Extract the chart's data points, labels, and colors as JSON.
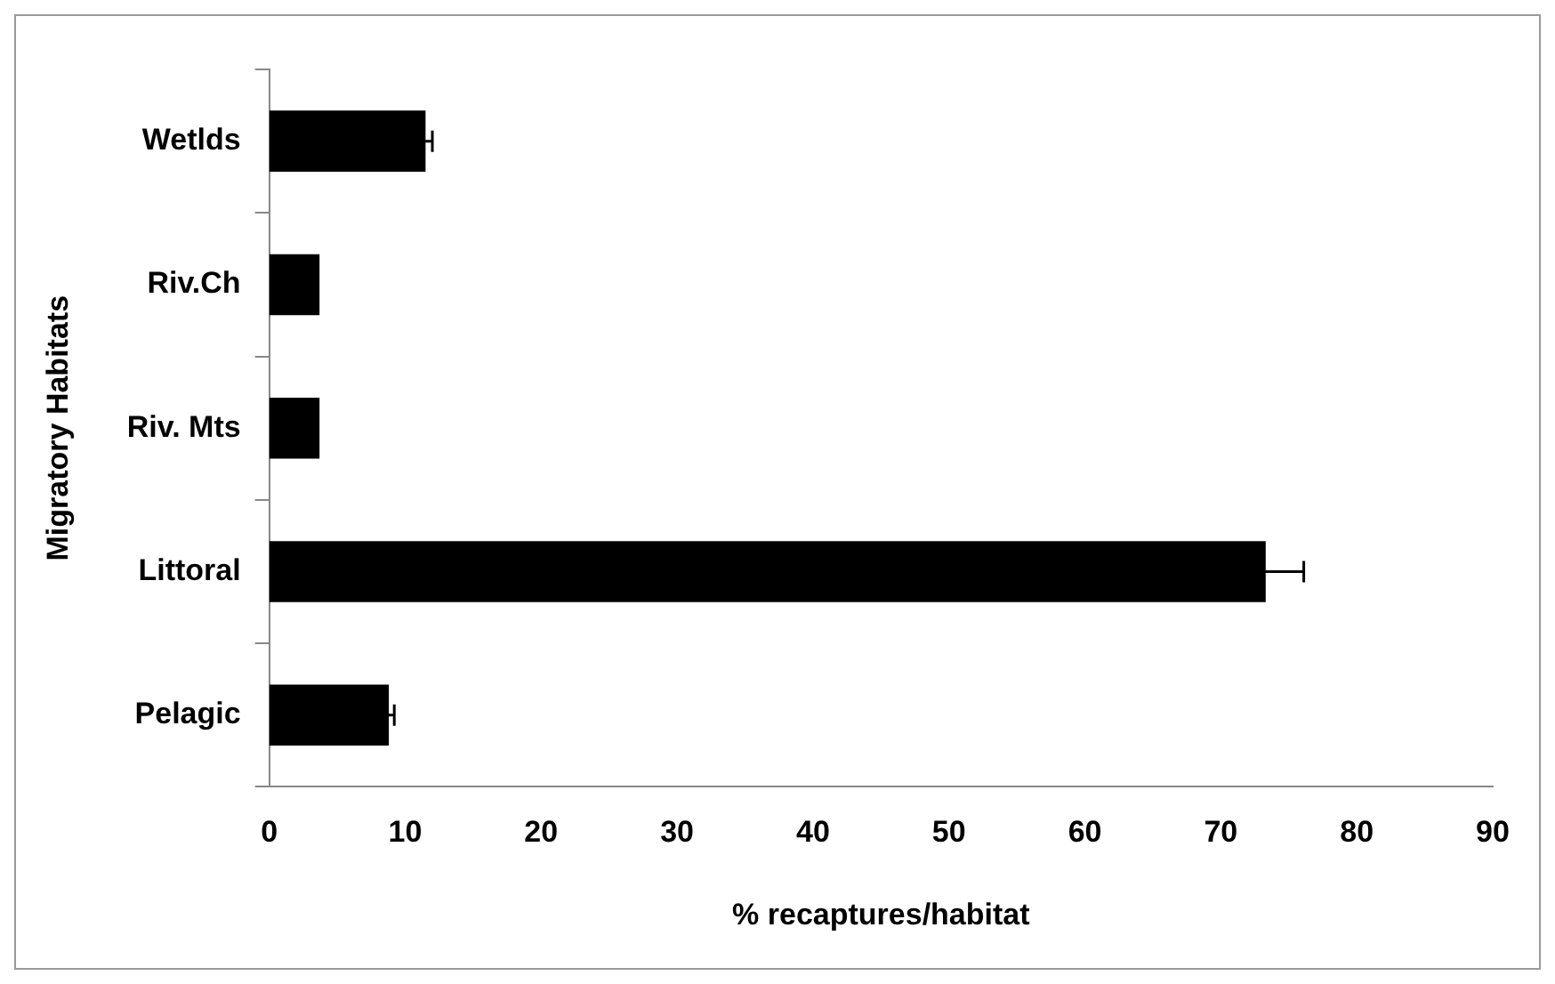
{
  "chart_data": {
    "type": "bar",
    "orientation": "horizontal",
    "xlabel": "% recaptures/habitat",
    "ylabel": "Migratory Habitats",
    "categories": [
      "Wetlds",
      "Riv.Ch",
      "Riv. Mts",
      "Littoral",
      "Pelagic"
    ],
    "values": [
      11.5,
      3.7,
      3.7,
      73.3,
      8.8
    ],
    "errors": [
      0.5,
      null,
      null,
      2.8,
      0.4
    ],
    "color": "#000000",
    "xlim": [
      0,
      90
    ],
    "xticks": [
      0,
      10,
      20,
      30,
      40,
      50,
      60,
      70,
      80,
      90
    ],
    "grid": false,
    "legend": false
  }
}
